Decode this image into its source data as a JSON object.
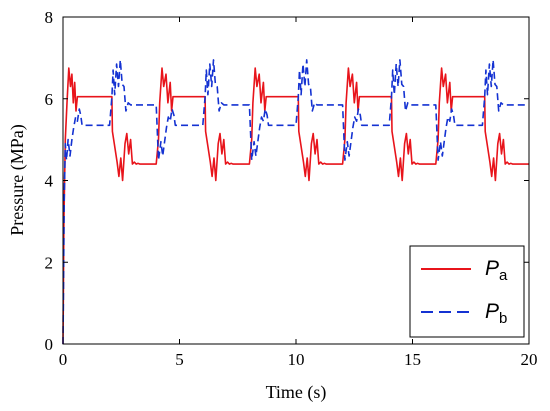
{
  "chart_data": {
    "type": "line",
    "xlabel": "Time (s)",
    "ylabel": "Pressure (MPa)",
    "xlim": [
      0,
      20
    ],
    "ylim": [
      0,
      8
    ],
    "xticks": [
      "0",
      "5",
      "10",
      "15",
      "20"
    ],
    "yticks": [
      "0",
      "2",
      "4",
      "6",
      "8"
    ],
    "grid": false,
    "legend_position": "bottom-right",
    "series": [
      {
        "name": "P_a",
        "legend_main": "P",
        "legend_sub": "a",
        "color": "#e8141b",
        "dash": "solid",
        "x": [
          0.0,
          0.04,
          0.1,
          0.17,
          0.25,
          0.32,
          0.38,
          0.44,
          0.5,
          0.56,
          0.62,
          0.7,
          0.8,
          1.1,
          2.1,
          2.12,
          2.2,
          2.32,
          2.4,
          2.48,
          2.56,
          2.66,
          2.74,
          2.82,
          2.9,
          2.98,
          3.06,
          3.14,
          3.22,
          3.3,
          4.0,
          4.1,
          4.15,
          4.25,
          4.32,
          4.42,
          4.5,
          4.6,
          4.66,
          4.72,
          4.78,
          4.86,
          4.94,
          5.02,
          5.1,
          5.2,
          5.3,
          6.1,
          6.12,
          6.2,
          6.32,
          6.4,
          6.48,
          6.56,
          6.66,
          6.74,
          6.82,
          6.9,
          6.98,
          7.06,
          7.14,
          7.22,
          7.3,
          8.0,
          8.1,
          8.15,
          8.25,
          8.32,
          8.42,
          8.5,
          8.6,
          8.66,
          8.72,
          8.78,
          8.86,
          8.94,
          9.02,
          9.1,
          9.2,
          9.3,
          10.1,
          10.12,
          10.2,
          10.32,
          10.4,
          10.48,
          10.56,
          10.66,
          10.74,
          10.82,
          10.9,
          10.98,
          11.06,
          11.14,
          11.22,
          11.3,
          12.0,
          12.1,
          12.15,
          12.25,
          12.32,
          12.42,
          12.5,
          12.6,
          12.66,
          12.72,
          12.78,
          12.86,
          12.94,
          13.02,
          13.1,
          13.2,
          13.3,
          14.1,
          14.12,
          14.2,
          14.32,
          14.4,
          14.48,
          14.56,
          14.66,
          14.74,
          14.82,
          14.9,
          14.98,
          15.06,
          15.14,
          15.22,
          15.3,
          16.0,
          16.1,
          16.15,
          16.25,
          16.32,
          16.42,
          16.5,
          16.6,
          16.66,
          16.72,
          16.78,
          16.86,
          16.94,
          17.02,
          17.1,
          17.2,
          17.3,
          18.1,
          18.12,
          18.2,
          18.32,
          18.4,
          18.48,
          18.56,
          18.66,
          18.74,
          18.82,
          18.9,
          18.98,
          19.06,
          19.14,
          19.22,
          19.3,
          20.0
        ],
        "y": [
          0.0,
          3.0,
          5.0,
          5.9,
          6.75,
          6.3,
          6.6,
          5.9,
          6.4,
          5.7,
          6.05,
          6.05,
          6.05,
          6.05,
          6.05,
          5.2,
          4.9,
          4.45,
          4.1,
          4.55,
          4.0,
          4.9,
          5.15,
          4.65,
          5.0,
          4.4,
          4.45,
          4.4,
          4.42,
          4.4,
          4.4,
          5.0,
          5.9,
          6.75,
          6.3,
          6.6,
          5.9,
          6.4,
          5.7,
          6.05,
          6.05,
          6.05,
          6.05,
          6.05,
          6.05,
          6.05,
          6.05,
          6.05,
          5.2,
          4.9,
          4.45,
          4.1,
          4.55,
          4.0,
          4.9,
          5.15,
          4.65,
          5.0,
          4.4,
          4.45,
          4.4,
          4.42,
          4.4,
          4.4,
          5.0,
          5.9,
          6.75,
          6.3,
          6.6,
          5.9,
          6.4,
          5.7,
          6.05,
          6.05,
          6.05,
          6.05,
          6.05,
          6.05,
          6.05,
          6.05,
          6.05,
          5.2,
          4.9,
          4.45,
          4.1,
          4.55,
          4.0,
          4.9,
          5.15,
          4.65,
          5.0,
          4.4,
          4.45,
          4.4,
          4.42,
          4.4,
          4.4,
          5.0,
          5.9,
          6.75,
          6.3,
          6.6,
          5.9,
          6.4,
          5.7,
          6.05,
          6.05,
          6.05,
          6.05,
          6.05,
          6.05,
          6.05,
          6.05,
          6.05,
          5.2,
          4.9,
          4.45,
          4.1,
          4.55,
          4.0,
          4.9,
          5.15,
          4.65,
          5.0,
          4.4,
          4.45,
          4.4,
          4.42,
          4.4,
          4.4,
          5.0,
          5.9,
          6.75,
          6.3,
          6.6,
          5.9,
          6.4,
          5.7,
          6.05,
          6.05,
          6.05,
          6.05,
          6.05,
          6.05,
          6.05,
          6.05,
          6.05,
          5.2,
          4.9,
          4.45,
          4.1,
          4.55,
          4.0,
          4.9,
          5.15,
          4.65,
          5.0,
          4.4,
          4.45,
          4.4,
          4.42,
          4.4,
          4.4
        ]
      },
      {
        "name": "P_b",
        "legend_main": "P",
        "legend_sub": "b",
        "color": "#1432d2",
        "dash": "dashed",
        "x": [
          0.0,
          0.05,
          0.1,
          0.15,
          0.22,
          0.3,
          0.38,
          0.46,
          0.54,
          0.62,
          0.7,
          0.76,
          0.82,
          1.0,
          1.5,
          2.0,
          2.1,
          2.15,
          2.22,
          2.3,
          2.38,
          2.46,
          2.54,
          2.62,
          2.7,
          2.8,
          2.9,
          3.2,
          3.6,
          4.0,
          4.1,
          4.2,
          4.28,
          4.36,
          4.44,
          4.52,
          4.6,
          4.68,
          4.76,
          4.82,
          4.88,
          5.0,
          5.5,
          6.0,
          6.1,
          6.15,
          6.22,
          6.3,
          6.38,
          6.46,
          6.54,
          6.62,
          6.7,
          6.8,
          6.9,
          7.2,
          7.6,
          8.0,
          8.1,
          8.2,
          8.28,
          8.36,
          8.44,
          8.52,
          8.6,
          8.68,
          8.76,
          8.82,
          8.88,
          9.0,
          9.5,
          10.0,
          10.1,
          10.15,
          10.22,
          10.3,
          10.38,
          10.46,
          10.54,
          10.62,
          10.7,
          10.8,
          10.9,
          11.2,
          11.6,
          12.0,
          12.1,
          12.2,
          12.28,
          12.36,
          12.44,
          12.52,
          12.6,
          12.68,
          12.76,
          12.82,
          12.88,
          13.0,
          13.5,
          14.0,
          14.1,
          14.15,
          14.22,
          14.3,
          14.38,
          14.46,
          14.54,
          14.62,
          14.7,
          14.8,
          14.9,
          15.2,
          15.6,
          16.0,
          16.1,
          16.2,
          16.28,
          16.36,
          16.44,
          16.52,
          16.6,
          16.68,
          16.76,
          16.82,
          16.88,
          17.0,
          17.5,
          18.0,
          18.1,
          18.15,
          18.22,
          18.3,
          18.38,
          18.46,
          18.54,
          18.62,
          18.7,
          18.8,
          18.9,
          19.2,
          19.6,
          20.0
        ],
        "y": [
          0.0,
          3.5,
          4.9,
          4.5,
          5.0,
          4.6,
          5.0,
          5.3,
          5.55,
          5.45,
          5.75,
          5.6,
          5.35,
          5.35,
          5.35,
          5.35,
          6.05,
          6.7,
          6.1,
          6.85,
          6.3,
          6.95,
          6.35,
          6.3,
          5.7,
          5.9,
          5.85,
          5.85,
          5.85,
          5.85,
          4.5,
          4.95,
          4.6,
          4.95,
          5.3,
          5.55,
          5.45,
          5.75,
          5.6,
          5.35,
          5.35,
          5.35,
          5.35,
          5.35,
          6.05,
          6.7,
          6.1,
          6.85,
          6.3,
          6.95,
          6.35,
          6.3,
          5.7,
          5.9,
          5.85,
          5.85,
          5.85,
          5.85,
          4.5,
          4.95,
          4.6,
          4.95,
          5.3,
          5.55,
          5.45,
          5.75,
          5.6,
          5.35,
          5.35,
          5.35,
          5.35,
          5.35,
          6.05,
          6.7,
          6.1,
          6.85,
          6.3,
          6.95,
          6.35,
          6.3,
          5.7,
          5.9,
          5.85,
          5.85,
          5.85,
          5.85,
          4.5,
          4.95,
          4.6,
          4.95,
          5.3,
          5.55,
          5.45,
          5.75,
          5.6,
          5.35,
          5.35,
          5.35,
          5.35,
          5.35,
          6.05,
          6.7,
          6.1,
          6.85,
          6.3,
          6.95,
          6.35,
          6.3,
          5.7,
          5.9,
          5.85,
          5.85,
          5.85,
          5.85,
          4.5,
          4.95,
          4.6,
          4.95,
          5.3,
          5.55,
          5.45,
          5.75,
          5.6,
          5.35,
          5.35,
          5.35,
          5.35,
          5.35,
          6.05,
          6.7,
          6.1,
          6.85,
          6.3,
          6.95,
          6.35,
          6.3,
          5.7,
          5.9,
          5.85,
          5.85,
          5.85,
          5.85
        ]
      }
    ]
  }
}
